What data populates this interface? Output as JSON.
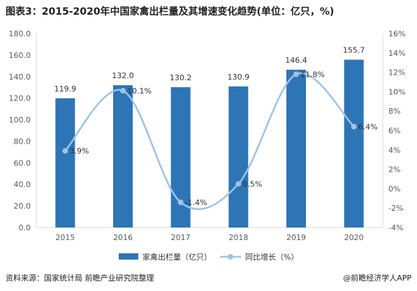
{
  "title": "图表3：2015-2020年中国家禽出栏量及其增速变化趋势(单位：亿只，%)",
  "source": "资料来源：国家统计局 前瞻产业研究院整理",
  "brand": "@前瞻经济学人APP",
  "colors": {
    "bar": "#2e75b6",
    "line": "#9dc3e6",
    "axis": "#595959",
    "grid": "#d9d9d9"
  },
  "chart_data": {
    "type": "bar",
    "categories": [
      "2015",
      "2016",
      "2017",
      "2018",
      "2019",
      "2020"
    ],
    "series": [
      {
        "name": "家禽出栏量（亿只）",
        "type": "bar",
        "axis": "left",
        "values": [
          119.9,
          132.0,
          130.2,
          130.9,
          146.4,
          155.7
        ],
        "labels": [
          "119.9",
          "132.0",
          "130.2",
          "130.9",
          "146.4",
          "155.7"
        ]
      },
      {
        "name": "同比增长（%）",
        "type": "line",
        "axis": "right",
        "values": [
          3.9,
          10.1,
          -1.4,
          0.5,
          11.8,
          6.4
        ],
        "labels": [
          "3.9%",
          "10.1%",
          "-1.4%",
          "0.5%",
          "11.8%",
          "6.4%"
        ]
      }
    ],
    "y_left": {
      "min": 0,
      "max": 180,
      "ticks": [
        0,
        20,
        40,
        60,
        80,
        100,
        120,
        140,
        160,
        180
      ],
      "tick_labels": [
        "0.0",
        "20.0",
        "40.0",
        "60.0",
        "80.0",
        "100.0",
        "120.0",
        "140.0",
        "160.0",
        "180.0"
      ]
    },
    "y_right": {
      "min": -4,
      "max": 16,
      "ticks": [
        -4,
        -2,
        0,
        2,
        4,
        6,
        8,
        10,
        12,
        14,
        16
      ],
      "tick_labels": [
        "-4%",
        "-2%",
        "0%",
        "2%",
        "4%",
        "6%",
        "8%",
        "10%",
        "12%",
        "14%",
        "16%"
      ]
    },
    "grid": false,
    "legend": "bottom"
  }
}
